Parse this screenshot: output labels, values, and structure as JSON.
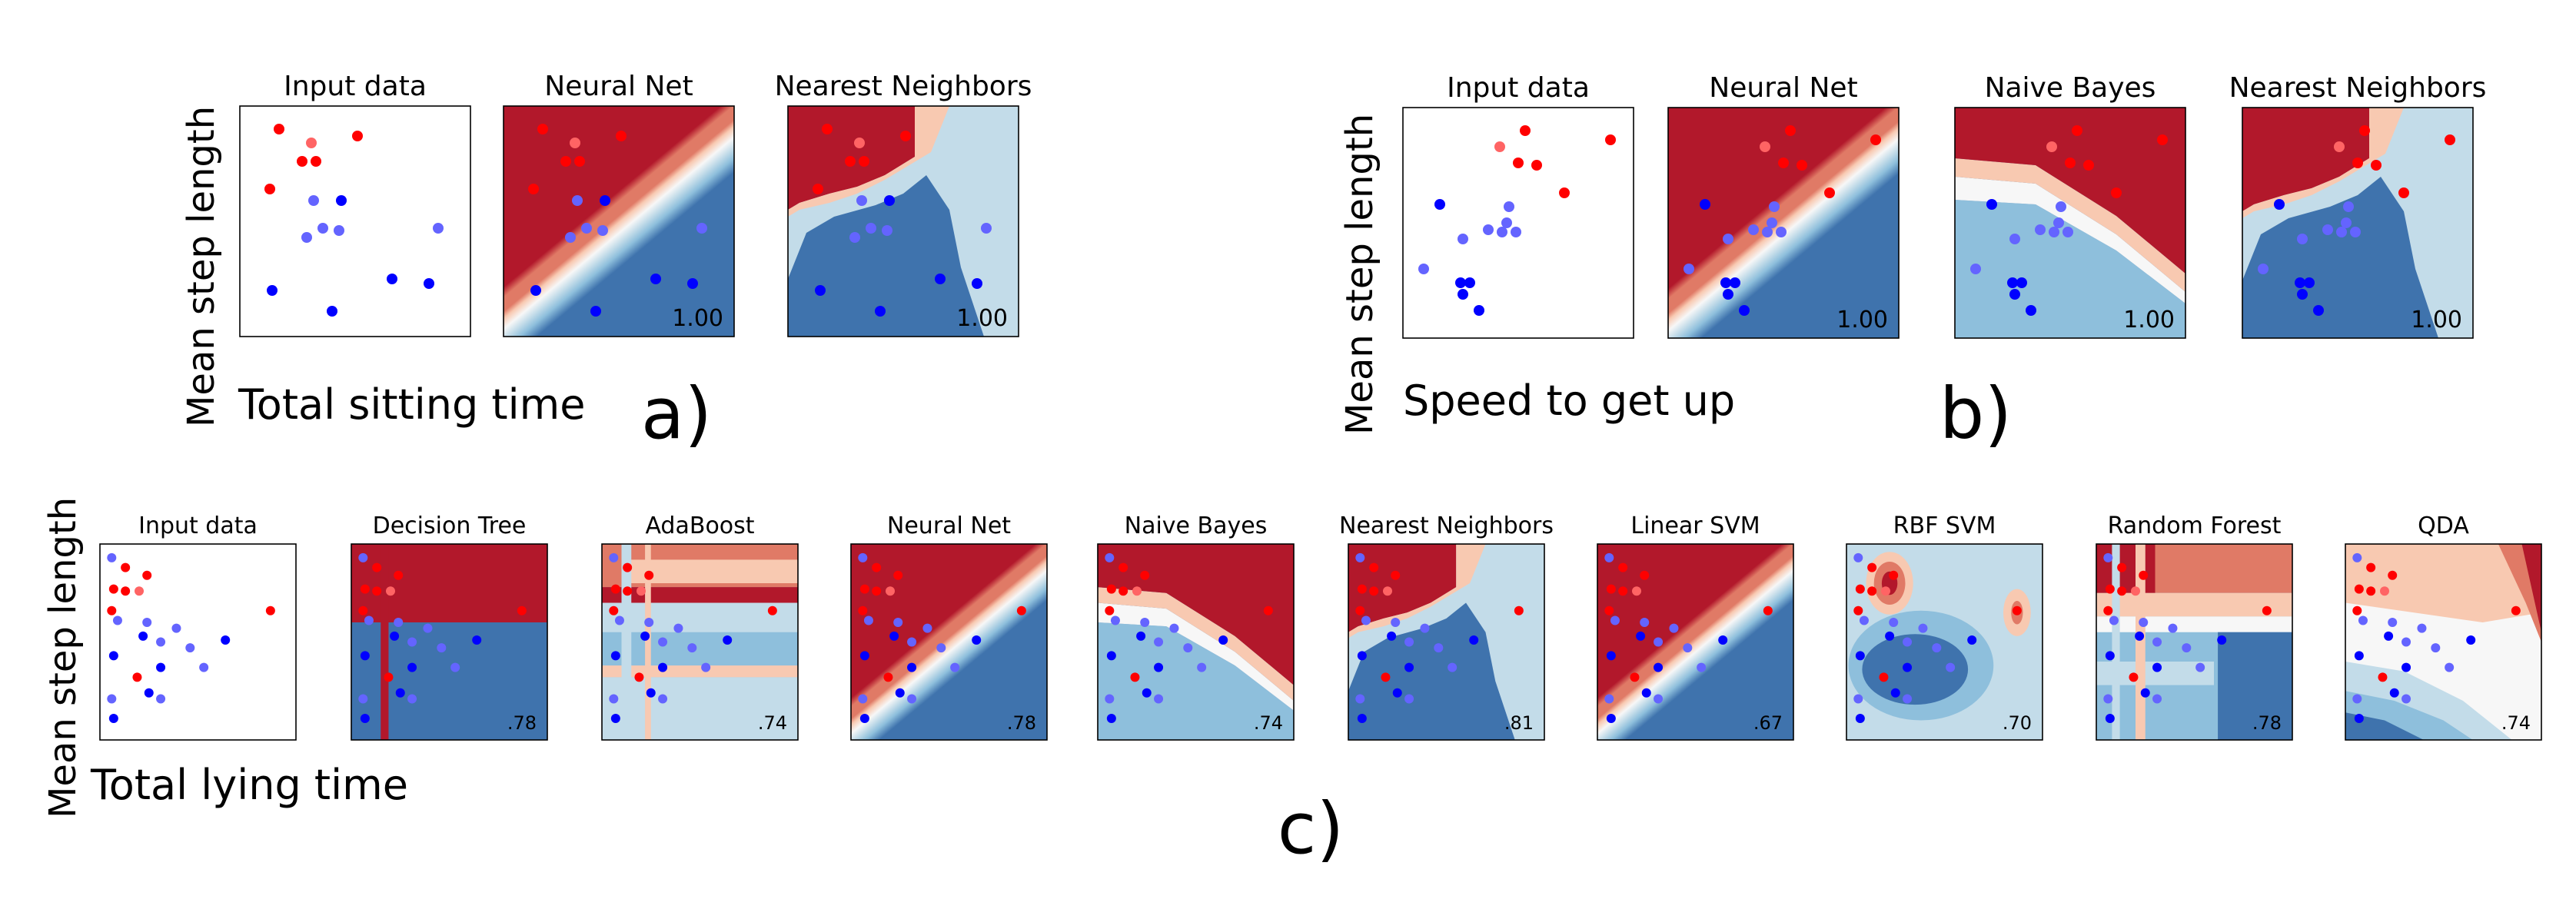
{
  "colors": {
    "red_dark": "#b2182b",
    "red_mid": "#e07a66",
    "red_light": "#f8c9b1",
    "white": "#f7f7f7",
    "blue_light": "#c3dce9",
    "blue_mid": "#8ebfdc",
    "blue_dark": "#3f73ad",
    "point_red": "#ff0000",
    "point_red_light": "#ff6464",
    "point_blue": "#0000ff",
    "point_blue_light": "#6464ff"
  },
  "sections": [
    {
      "id": "a",
      "label": "a)",
      "ylabel": "Mean step length",
      "xlabel": "Total sitting time"
    },
    {
      "id": "b",
      "label": "b)",
      "ylabel": "Mean step length",
      "xlabel": "Speed to get up"
    },
    {
      "id": "c",
      "label": "c)",
      "ylabel": "Mean step length",
      "xlabel": "Total lying time"
    }
  ],
  "chart_data": [
    {
      "section": "a",
      "type": "scatter",
      "xlabel": "Total sitting time",
      "ylabel": "Mean step length",
      "panels": [
        {
          "title": "Input data",
          "score": "",
          "boundary": "none"
        },
        {
          "title": "Neural Net",
          "score": "1.00",
          "boundary": "linear"
        },
        {
          "title": "Nearest Neighbors",
          "score": "1.00",
          "boundary": "knn"
        }
      ],
      "points": [
        {
          "x": 0.17,
          "y": 0.9,
          "class": "red"
        },
        {
          "x": 0.31,
          "y": 0.84,
          "class": "red_light"
        },
        {
          "x": 0.27,
          "y": 0.76,
          "class": "red"
        },
        {
          "x": 0.33,
          "y": 0.76,
          "class": "red"
        },
        {
          "x": 0.51,
          "y": 0.87,
          "class": "red"
        },
        {
          "x": 0.13,
          "y": 0.64,
          "class": "red"
        },
        {
          "x": 0.32,
          "y": 0.59,
          "class": "blue_light"
        },
        {
          "x": 0.44,
          "y": 0.59,
          "class": "blue"
        },
        {
          "x": 0.36,
          "y": 0.47,
          "class": "blue_light"
        },
        {
          "x": 0.43,
          "y": 0.46,
          "class": "blue_light"
        },
        {
          "x": 0.29,
          "y": 0.43,
          "class": "blue_light"
        },
        {
          "x": 0.86,
          "y": 0.47,
          "class": "blue_light"
        },
        {
          "x": 0.14,
          "y": 0.2,
          "class": "blue"
        },
        {
          "x": 0.66,
          "y": 0.25,
          "class": "blue"
        },
        {
          "x": 0.82,
          "y": 0.23,
          "class": "blue"
        },
        {
          "x": 0.4,
          "y": 0.11,
          "class": "blue"
        }
      ]
    },
    {
      "section": "b",
      "type": "scatter",
      "xlabel": "Speed to get up",
      "ylabel": "Mean step length",
      "panels": [
        {
          "title": "Input data",
          "score": "",
          "boundary": "none"
        },
        {
          "title": "Neural Net",
          "score": "1.00",
          "boundary": "linear"
        },
        {
          "title": "Naive Bayes",
          "score": "1.00",
          "boundary": "curve"
        },
        {
          "title": "Nearest Neighbors",
          "score": "1.00",
          "boundary": "knn"
        }
      ],
      "points": [
        {
          "x": 0.53,
          "y": 0.9,
          "class": "red"
        },
        {
          "x": 0.9,
          "y": 0.86,
          "class": "red"
        },
        {
          "x": 0.42,
          "y": 0.83,
          "class": "red_light"
        },
        {
          "x": 0.5,
          "y": 0.76,
          "class": "red"
        },
        {
          "x": 0.58,
          "y": 0.75,
          "class": "red"
        },
        {
          "x": 0.7,
          "y": 0.63,
          "class": "red"
        },
        {
          "x": 0.46,
          "y": 0.57,
          "class": "blue_light"
        },
        {
          "x": 0.16,
          "y": 0.58,
          "class": "blue"
        },
        {
          "x": 0.45,
          "y": 0.5,
          "class": "blue_light"
        },
        {
          "x": 0.37,
          "y": 0.47,
          "class": "blue_light"
        },
        {
          "x": 0.43,
          "y": 0.46,
          "class": "blue_light"
        },
        {
          "x": 0.49,
          "y": 0.46,
          "class": "blue_light"
        },
        {
          "x": 0.26,
          "y": 0.43,
          "class": "blue_light"
        },
        {
          "x": 0.09,
          "y": 0.3,
          "class": "blue_light"
        },
        {
          "x": 0.25,
          "y": 0.24,
          "class": "blue"
        },
        {
          "x": 0.29,
          "y": 0.24,
          "class": "blue"
        },
        {
          "x": 0.26,
          "y": 0.19,
          "class": "blue"
        },
        {
          "x": 0.33,
          "y": 0.12,
          "class": "blue"
        }
      ]
    },
    {
      "section": "c",
      "type": "scatter",
      "xlabel": "Total lying time",
      "ylabel": "Mean step length",
      "panels": [
        {
          "title": "Input data",
          "score": "",
          "boundary": "none"
        },
        {
          "title": "Decision Tree",
          "score": ".78",
          "boundary": "tree"
        },
        {
          "title": "AdaBoost",
          "score": ".74",
          "boundary": "boost"
        },
        {
          "title": "Neural Net",
          "score": ".78",
          "boundary": "linear"
        },
        {
          "title": "Naive Bayes",
          "score": ".74",
          "boundary": "curve"
        },
        {
          "title": "Nearest Neighbors",
          "score": ".81",
          "boundary": "knn"
        },
        {
          "title": "Linear SVM",
          "score": ".67",
          "boundary": "linear"
        },
        {
          "title": "RBF SVM",
          "score": ".70",
          "boundary": "rbf"
        },
        {
          "title": "Random Forest",
          "score": ".78",
          "boundary": "forest"
        },
        {
          "title": "QDA",
          "score": ".74",
          "boundary": "qda"
        }
      ],
      "points": [
        {
          "x": 0.06,
          "y": 0.93,
          "class": "blue_light"
        },
        {
          "x": 0.13,
          "y": 0.88,
          "class": "red"
        },
        {
          "x": 0.24,
          "y": 0.84,
          "class": "red"
        },
        {
          "x": 0.07,
          "y": 0.77,
          "class": "red"
        },
        {
          "x": 0.13,
          "y": 0.76,
          "class": "red"
        },
        {
          "x": 0.2,
          "y": 0.76,
          "class": "red_light"
        },
        {
          "x": 0.06,
          "y": 0.66,
          "class": "red"
        },
        {
          "x": 0.09,
          "y": 0.61,
          "class": "blue_light"
        },
        {
          "x": 0.24,
          "y": 0.6,
          "class": "blue_light"
        },
        {
          "x": 0.39,
          "y": 0.57,
          "class": "blue_light"
        },
        {
          "x": 0.64,
          "y": 0.51,
          "class": "blue"
        },
        {
          "x": 0.87,
          "y": 0.66,
          "class": "red"
        },
        {
          "x": 0.22,
          "y": 0.53,
          "class": "blue"
        },
        {
          "x": 0.31,
          "y": 0.5,
          "class": "blue_light"
        },
        {
          "x": 0.46,
          "y": 0.47,
          "class": "blue_light"
        },
        {
          "x": 0.07,
          "y": 0.43,
          "class": "blue"
        },
        {
          "x": 0.31,
          "y": 0.37,
          "class": "blue"
        },
        {
          "x": 0.53,
          "y": 0.37,
          "class": "blue_light"
        },
        {
          "x": 0.19,
          "y": 0.32,
          "class": "red"
        },
        {
          "x": 0.06,
          "y": 0.21,
          "class": "blue_light"
        },
        {
          "x": 0.25,
          "y": 0.24,
          "class": "blue"
        },
        {
          "x": 0.31,
          "y": 0.21,
          "class": "blue_light"
        },
        {
          "x": 0.07,
          "y": 0.11,
          "class": "blue"
        }
      ]
    }
  ]
}
